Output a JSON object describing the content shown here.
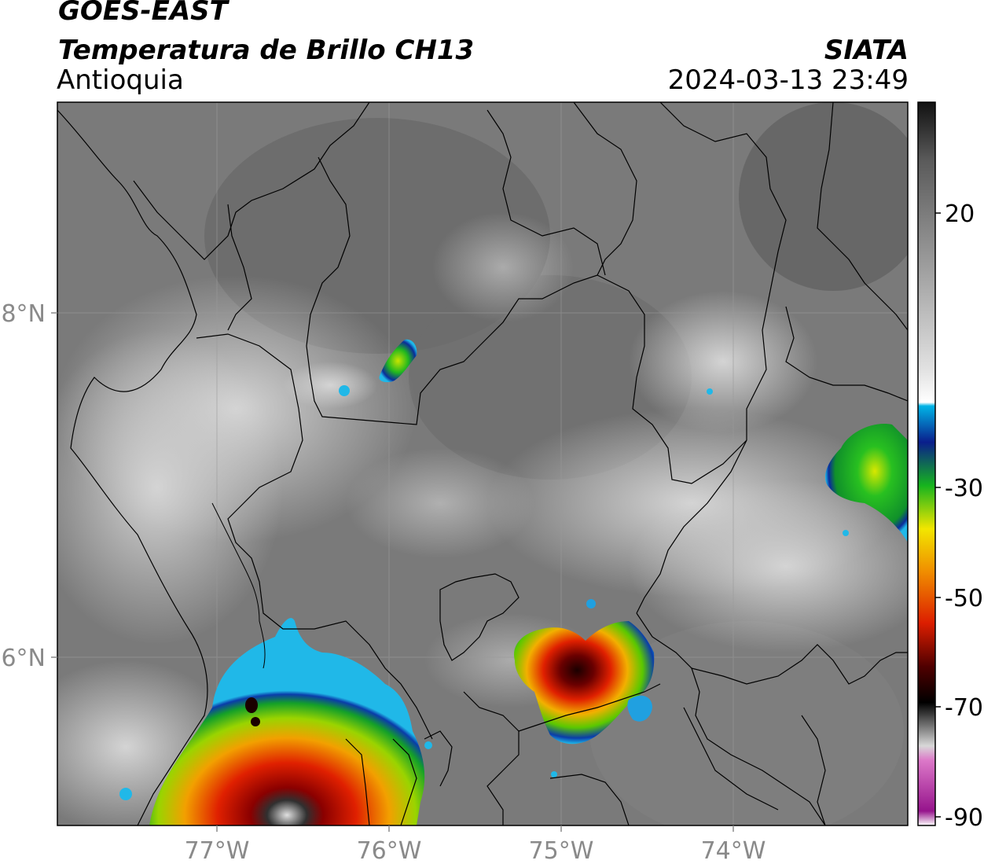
{
  "header": {
    "satellite": "GOES-EAST",
    "product": "Temperatura de Brillo CH13",
    "region": "Antioquia",
    "organization": "SIATA",
    "datetime": "2024-03-13 23:49"
  },
  "map": {
    "lon_labels": [
      "77°W",
      "76°W",
      "75°W",
      "74°W"
    ],
    "lat_labels": [
      "8°N",
      "6°N"
    ]
  },
  "colorbar": {
    "tick_labels": [
      "20",
      "-30",
      "-50",
      "-70",
      "-90"
    ],
    "colors": {
      "warm_top": "#1c1c1c",
      "warm_mid": "#9c9c9c",
      "neutral": "#f4f4f4",
      "cyan": "#00b4e6",
      "navy": "#0a1e8c",
      "green": "#16b41e",
      "yellow": "#f2e600",
      "orange": "#f08c00",
      "red": "#dc1e00",
      "dark_red": "#500000",
      "black": "#000000",
      "pink": "#dc78c8",
      "magenta": "#96148c"
    }
  }
}
